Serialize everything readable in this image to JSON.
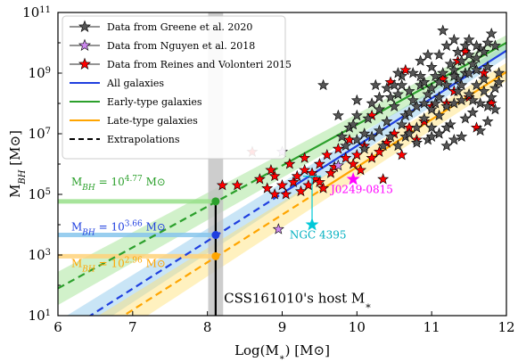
{
  "chart_data": {
    "type": "scatter",
    "xlabel": "Log(M*) [M⊙]",
    "ylabel": "M_BH [M⊙]",
    "xlim": [
      6,
      12
    ],
    "ylim_log10": [
      1,
      11
    ],
    "y_scale": "log",
    "xticks": [
      6,
      7,
      8,
      9,
      10,
      11,
      12
    ],
    "xtick_labels": [
      "6",
      "7",
      "8",
      "9",
      "10",
      "11",
      "12"
    ],
    "yticks_log10": [
      1,
      3,
      5,
      7,
      9,
      11
    ],
    "ytick_labels": [
      "10^1",
      "10^3",
      "10^5",
      "10^7",
      "10^9",
      "10^11"
    ],
    "legend_position": "top-left",
    "legend": [
      {
        "label": "Data from Greene et al. 2020",
        "kind": "star",
        "color": "#555555"
      },
      {
        "label": "Data from Nguyen et al. 2018",
        "kind": "star",
        "color": "#cc88ee"
      },
      {
        "label": "Data from Reines and Volonteri 2015",
        "kind": "star",
        "color": "#ff0000"
      },
      {
        "label": "All galaxies",
        "kind": "line",
        "color": "#1f3fdf"
      },
      {
        "label": "Early-type galaxies",
        "kind": "line",
        "color": "#2ca02c"
      },
      {
        "label": "Late-type galaxies",
        "kind": "line",
        "color": "#ffa500"
      },
      {
        "label": "Extrapolations",
        "kind": "dashed",
        "color": "#000000"
      }
    ],
    "fits": [
      {
        "name": "All galaxies",
        "color": "#1f3fdf",
        "band": "#87c5ec",
        "slope": 1.57,
        "intercept": -9.1,
        "split_x": 9.0,
        "bw_start": 0.5,
        "bw_end": 0.22
      },
      {
        "name": "Early-type galaxies",
        "color": "#2ca02c",
        "band": "#98df8a",
        "slope": 1.35,
        "intercept": -6.2,
        "split_x": 9.0,
        "bw_start": 0.55,
        "bw_end": 0.25
      },
      {
        "name": "Late-type galaxies",
        "color": "#ffa500",
        "band": "#ffe070",
        "slope": 1.57,
        "intercept": -9.8,
        "split_x": 9.5,
        "bw_start": 0.55,
        "bw_end": 0.3
      }
    ],
    "series": [
      {
        "name": "Data from Greene et al. 2020",
        "color": "#555555",
        "points": [
          [
            9.55,
            8.6
          ],
          [
            10.0,
            8.1
          ],
          [
            10.2,
            8.0
          ],
          [
            10.3,
            8.2
          ],
          [
            10.4,
            8.5
          ],
          [
            10.5,
            8.6
          ],
          [
            10.55,
            8.3
          ],
          [
            10.6,
            8.9
          ],
          [
            10.65,
            7.6
          ],
          [
            10.7,
            8.4
          ],
          [
            10.75,
            8.1
          ],
          [
            10.8,
            7.9
          ],
          [
            10.85,
            8.6
          ],
          [
            10.9,
            8.7
          ],
          [
            10.95,
            8.3
          ],
          [
            11.0,
            9.2
          ],
          [
            11.0,
            8.5
          ],
          [
            11.05,
            8.9
          ],
          [
            11.1,
            8.2
          ],
          [
            11.15,
            9.0
          ],
          [
            11.2,
            8.6
          ],
          [
            11.25,
            9.3
          ],
          [
            11.3,
            9.1
          ],
          [
            11.35,
            8.8
          ],
          [
            11.4,
            9.4
          ],
          [
            11.45,
            9.0
          ],
          [
            11.5,
            9.6
          ],
          [
            11.55,
            9.3
          ],
          [
            11.6,
            9.5
          ],
          [
            11.65,
            9.8
          ],
          [
            11.7,
            9.7
          ],
          [
            11.75,
            10.0
          ],
          [
            11.8,
            10.3
          ],
          [
            11.85,
            9.9
          ],
          [
            10.6,
            7.3
          ],
          [
            10.7,
            7.7
          ],
          [
            10.8,
            7.2
          ],
          [
            10.9,
            7.5
          ],
          [
            11.0,
            7.8
          ],
          [
            11.1,
            7.6
          ],
          [
            11.2,
            7.9
          ],
          [
            11.3,
            8.0
          ],
          [
            11.4,
            8.1
          ],
          [
            11.5,
            8.3
          ],
          [
            11.6,
            8.6
          ],
          [
            11.7,
            8.8
          ],
          [
            11.15,
            10.4
          ],
          [
            11.3,
            10.1
          ],
          [
            10.85,
            9.4
          ],
          [
            11.1,
            9.6
          ],
          [
            10.5,
            7.9
          ],
          [
            10.4,
            7.4
          ],
          [
            10.3,
            7.1
          ],
          [
            10.2,
            6.9
          ],
          [
            10.1,
            7.0
          ],
          [
            10.0,
            6.8
          ],
          [
            9.9,
            7.2
          ],
          [
            9.8,
            6.9
          ],
          [
            10.65,
            6.9
          ],
          [
            10.95,
            6.8
          ],
          [
            11.1,
            7.0
          ],
          [
            11.25,
            7.3
          ],
          [
            11.45,
            7.5
          ],
          [
            11.55,
            7.7
          ],
          [
            11.65,
            7.1
          ],
          [
            11.75,
            7.4
          ],
          [
            11.8,
            8.2
          ],
          [
            11.85,
            8.5
          ],
          [
            11.9,
            9.0
          ],
          [
            11.9,
            8.7
          ],
          [
            11.6,
            9.9
          ],
          [
            11.5,
            10.1
          ],
          [
            10.75,
            9.0
          ],
          [
            11.05,
            8.0
          ],
          [
            11.35,
            8.4
          ],
          [
            11.7,
            8.4
          ],
          [
            10.45,
            6.9
          ],
          [
            10.55,
            6.6
          ],
          [
            10.8,
            6.7
          ],
          [
            11.2,
            6.6
          ],
          [
            11.4,
            6.9
          ],
          [
            11.0,
            7.2
          ],
          [
            10.6,
            8.6
          ],
          [
            10.3,
            7.8
          ],
          [
            10.15,
            7.5
          ],
          [
            10.0,
            7.6
          ],
          [
            9.95,
            7.3
          ],
          [
            9.75,
            7.6
          ],
          [
            10.45,
            8.2
          ],
          [
            10.85,
            8.9
          ],
          [
            11.2,
            9.9
          ],
          [
            11.35,
            9.7
          ],
          [
            11.45,
            9.9
          ],
          [
            11.75,
            9.2
          ],
          [
            11.6,
            9.1
          ],
          [
            11.5,
            9.0
          ],
          [
            10.9,
            8.0
          ],
          [
            11.1,
            8.7
          ],
          [
            11.3,
            8.9
          ],
          [
            11.4,
            8.6
          ],
          [
            11.55,
            8.1
          ],
          [
            11.65,
            8.0
          ],
          [
            11.75,
            7.9
          ],
          [
            11.85,
            7.8
          ],
          [
            10.7,
            7.0
          ],
          [
            11.0,
            6.9
          ],
          [
            11.2,
            7.2
          ],
          [
            11.3,
            6.8
          ],
          [
            10.35,
            6.6
          ],
          [
            10.1,
            6.5
          ],
          [
            9.85,
            6.6
          ],
          [
            10.25,
            8.6
          ],
          [
            10.55,
            9.0
          ],
          [
            10.95,
            9.6
          ]
        ]
      },
      {
        "name": "Data from Nguyen et al. 2018",
        "color": "#cc88ee",
        "points": [
          [
            9.0,
            6.4
          ],
          [
            8.95,
            3.85
          ],
          [
            9.75,
            5.95
          ]
        ]
      },
      {
        "name": "Data from Reines and Volonteri 2015",
        "color": "#ff0000",
        "points": [
          [
            8.4,
            5.3
          ],
          [
            8.7,
            5.5
          ],
          [
            8.8,
            5.2
          ],
          [
            8.9,
            5.0
          ],
          [
            8.9,
            5.6
          ],
          [
            9.0,
            5.3
          ],
          [
            9.05,
            5.0
          ],
          [
            9.15,
            5.4
          ],
          [
            9.2,
            5.6
          ],
          [
            9.25,
            5.1
          ],
          [
            9.3,
            5.8
          ],
          [
            9.35,
            5.3
          ],
          [
            9.4,
            5.7
          ],
          [
            9.45,
            5.5
          ],
          [
            9.5,
            6.0
          ],
          [
            9.5,
            5.4
          ],
          [
            9.55,
            5.2
          ],
          [
            9.6,
            6.3
          ],
          [
            9.7,
            5.9
          ],
          [
            9.75,
            6.5
          ],
          [
            9.85,
            6.2
          ],
          [
            9.9,
            6.8
          ],
          [
            9.95,
            6.0
          ],
          [
            10.0,
            6.3
          ],
          [
            10.05,
            5.8
          ],
          [
            10.1,
            6.6
          ],
          [
            10.2,
            6.2
          ],
          [
            10.3,
            6.4
          ],
          [
            10.4,
            6.7
          ],
          [
            10.5,
            7.0
          ],
          [
            10.6,
            6.3
          ],
          [
            10.7,
            7.2
          ],
          [
            10.8,
            6.8
          ],
          [
            10.9,
            7.4
          ],
          [
            11.0,
            7.9
          ],
          [
            11.1,
            7.0
          ],
          [
            11.2,
            8.0
          ],
          [
            11.3,
            8.4
          ],
          [
            11.5,
            8.2
          ],
          [
            11.6,
            7.2
          ],
          [
            11.7,
            9.0
          ],
          [
            11.8,
            8.0
          ],
          [
            11.15,
            8.8
          ],
          [
            11.35,
            9.4
          ],
          [
            10.45,
            8.7
          ],
          [
            10.2,
            7.6
          ],
          [
            10.65,
            9.1
          ],
          [
            11.45,
            9.7
          ],
          [
            8.6,
            6.4
          ],
          [
            8.2,
            5.3
          ],
          [
            9.3,
            6.2
          ],
          [
            8.85,
            5.8
          ],
          [
            9.65,
            5.7
          ],
          [
            10.35,
            5.5
          ],
          [
            9.1,
            6.0
          ]
        ]
      }
    ],
    "highlight_stars": [
      {
        "label": "J0249-0815",
        "x": 9.95,
        "y": 5.5,
        "color": "#ff00ff",
        "label_color": "#ff00ff",
        "label_x": 9.65,
        "label_y": 5.05
      },
      {
        "label": "NGC 4395",
        "x": 9.4,
        "y": 4.0,
        "color": "#00c8d8",
        "label_color": "#00b0c0",
        "label_x": 9.1,
        "label_y": 3.55
      }
    ],
    "host": {
      "label": "CSS161010's host M*",
      "x": 8.11,
      "x_err": 0.1,
      "band_color": "#c0c0c0"
    },
    "host_estimates": [
      {
        "label": "M_BH = 10^4.77 M⊙",
        "y": 4.77,
        "color": "#2ca02c",
        "label_color": "#2ca02c",
        "line_color": "#98df8a"
      },
      {
        "label": "M_BH = 10^3.66 M⊙",
        "y": 3.66,
        "color": "#1f3fdf",
        "label_color": "#1f3fdf",
        "line_color": "#87c5ec"
      },
      {
        "label": "M_BH = 10^2.96 M⊙",
        "y": 2.96,
        "color": "#ffa500",
        "label_color": "#ffa500",
        "line_color": "#ffd27a"
      }
    ]
  }
}
